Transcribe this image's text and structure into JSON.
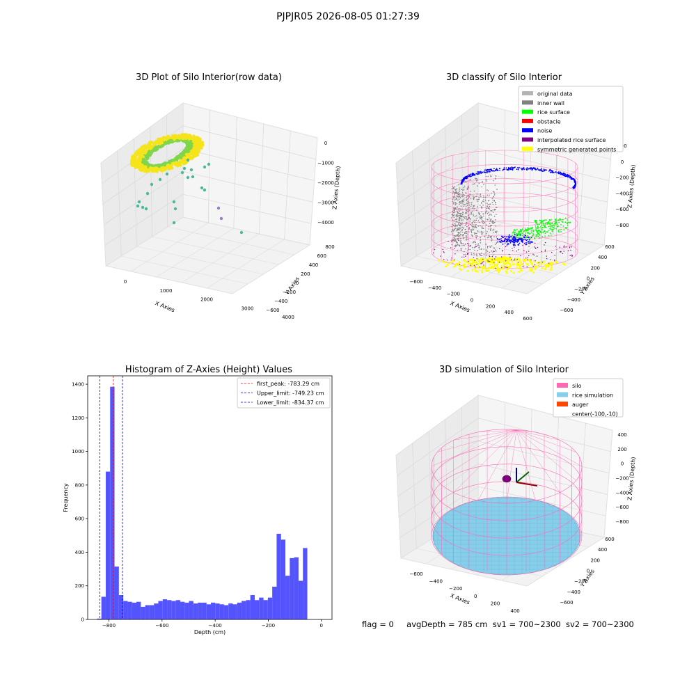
{
  "suptitle": "PJPJR05 2026-08-05 01:27:39",
  "status": {
    "flag": "flag = 0",
    "avg_depth": "avgDepth = 785 cm",
    "sv1": "sv1 = 700~2300",
    "sv2": "sv2 = 700~2300"
  },
  "chart_data": [
    {
      "type": "scatter",
      "title": "3D Plot of Silo Interior(row data)",
      "xlabel": "X Axies",
      "ylabel": "Y Axies",
      "zlabel": "Z Axies (Depth)",
      "x_ticks": [
        "0",
        "1000",
        "2000",
        "3000",
        "4000"
      ],
      "y_ticks": [
        "800",
        "600",
        "400",
        "200",
        "0",
        "−200",
        "−400",
        "−600"
      ],
      "z_ticks": [
        "0",
        "−1000",
        "−2000",
        "−3000",
        "−4000"
      ],
      "colors": {
        "primary": "#f5e41a",
        "secondary": "#7fd64a",
        "sparse": "#4cb89a",
        "outlier": "#9a7fbf"
      }
    },
    {
      "type": "scatter",
      "title": "3D classify of Silo Interior",
      "xlabel": "X Axies",
      "ylabel": "Y Axies",
      "zlabel": "Z Axies (Depth)",
      "x_ticks": [
        "−600",
        "−400",
        "−200",
        "0",
        "200",
        "400",
        "600"
      ],
      "y_ticks": [
        "600",
        "400",
        "200",
        "0",
        "−200",
        "−400",
        "−600"
      ],
      "z_ticks": [
        "200",
        "0",
        "−200",
        "−400",
        "−600",
        "−800"
      ],
      "legend": [
        {
          "label": "original data",
          "color": "#b4b4b4"
        },
        {
          "label": "inner wall",
          "color": "#808080"
        },
        {
          "label": "rice surface",
          "color": "#00ff00"
        },
        {
          "label": "obstacle",
          "color": "#ff0000"
        },
        {
          "label": "noise",
          "color": "#0000ff"
        },
        {
          "label": "interpolated rice surface",
          "color": "#800080"
        },
        {
          "label": "symmetric generated points",
          "color": "#ffff00"
        }
      ],
      "wire_color": "#ff80c0"
    },
    {
      "type": "bar",
      "title": "Histogram of Z-Axies (Height) Values",
      "xlabel": "Depth (cm)",
      "ylabel": "Frequency",
      "xlim": [
        -880,
        40
      ],
      "ylim": [
        0,
        1450
      ],
      "x_ticks": [
        {
          "v": -800,
          "t": "−800"
        },
        {
          "v": -600,
          "t": "−600"
        },
        {
          "v": -400,
          "t": "−400"
        },
        {
          "v": -200,
          "t": "−200"
        },
        {
          "v": 0,
          "t": "0"
        }
      ],
      "y_ticks": [
        0,
        200,
        400,
        600,
        800,
        1000,
        1200,
        1400
      ],
      "bar_color": "#4b4bff",
      "bin_start": -845,
      "bin_width": 16.5,
      "values": [
        5,
        135,
        880,
        1385,
        315,
        145,
        110,
        105,
        100,
        105,
        75,
        85,
        85,
        95,
        110,
        120,
        115,
        110,
        115,
        105,
        100,
        110,
        95,
        100,
        100,
        90,
        100,
        95,
        90,
        85,
        95,
        90,
        100,
        110,
        115,
        145,
        115,
        130,
        115,
        130,
        195,
        510,
        475,
        260,
        365,
        370,
        230,
        425
      ],
      "vlines": [
        {
          "label": "first_peak: -783.29 cm",
          "x": -783.29,
          "color": "#ff0000"
        },
        {
          "label": "Upper_limit: -749.23 cm",
          "x": -749.23,
          "color": "#0000cc"
        },
        {
          "label": "Lower_limit: -834.37 cm",
          "x": -834.37,
          "color": "#0000cc"
        }
      ]
    },
    {
      "type": "scatter",
      "title": "3D simulation of Silo Interior",
      "xlabel": "X Axies",
      "ylabel": "Y Axies",
      "zlabel": "Z Axies (Depth)",
      "x_ticks": [
        "−600",
        "−400",
        "−200",
        "0",
        "200",
        "400"
      ],
      "y_ticks": [
        "600",
        "400",
        "200",
        "0",
        "−200",
        "−400",
        "−600"
      ],
      "z_ticks": [
        "400",
        "200",
        "0",
        "−200",
        "−400",
        "−600",
        "−800"
      ],
      "legend": [
        {
          "label": "silo",
          "color": "#ff69b4"
        },
        {
          "label": "rice simulation",
          "color": "#87ceeb"
        },
        {
          "label": "auger",
          "color": "#ff4500"
        },
        {
          "label": "center(-100,-10)",
          "color": ""
        }
      ],
      "wire_color": "#ff69b4",
      "rice_color": "#87ceeb"
    }
  ]
}
